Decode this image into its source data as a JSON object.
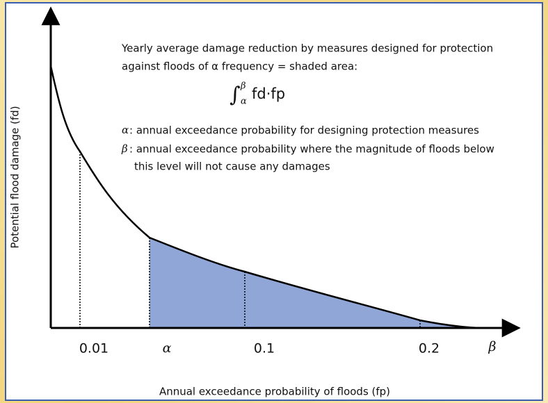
{
  "annotation": {
    "lines": [
      "Yearly average damage reduction by measures designed for protection",
      "against floods of α frequency = shaded area:"
    ],
    "integral": {
      "symbol": "∫",
      "upper": "β",
      "lower": "α",
      "integrand": "fd·fp"
    },
    "alpha": {
      "symbol": "α",
      "text": ": annual exceedance probability for designing protection measures"
    },
    "beta": {
      "symbol": "β",
      "text": ": annual exceedance probability where the magnitude of floods below",
      "continuation": "this level will not cause any damages"
    }
  },
  "x_axis": {
    "label": "Annual exceedance probability of floods (fp)",
    "ticks": [
      "0.01",
      "α",
      "0.1",
      "0.2",
      "β"
    ]
  },
  "y_axis": {
    "label": "Potential flood damage (fd)"
  }
}
